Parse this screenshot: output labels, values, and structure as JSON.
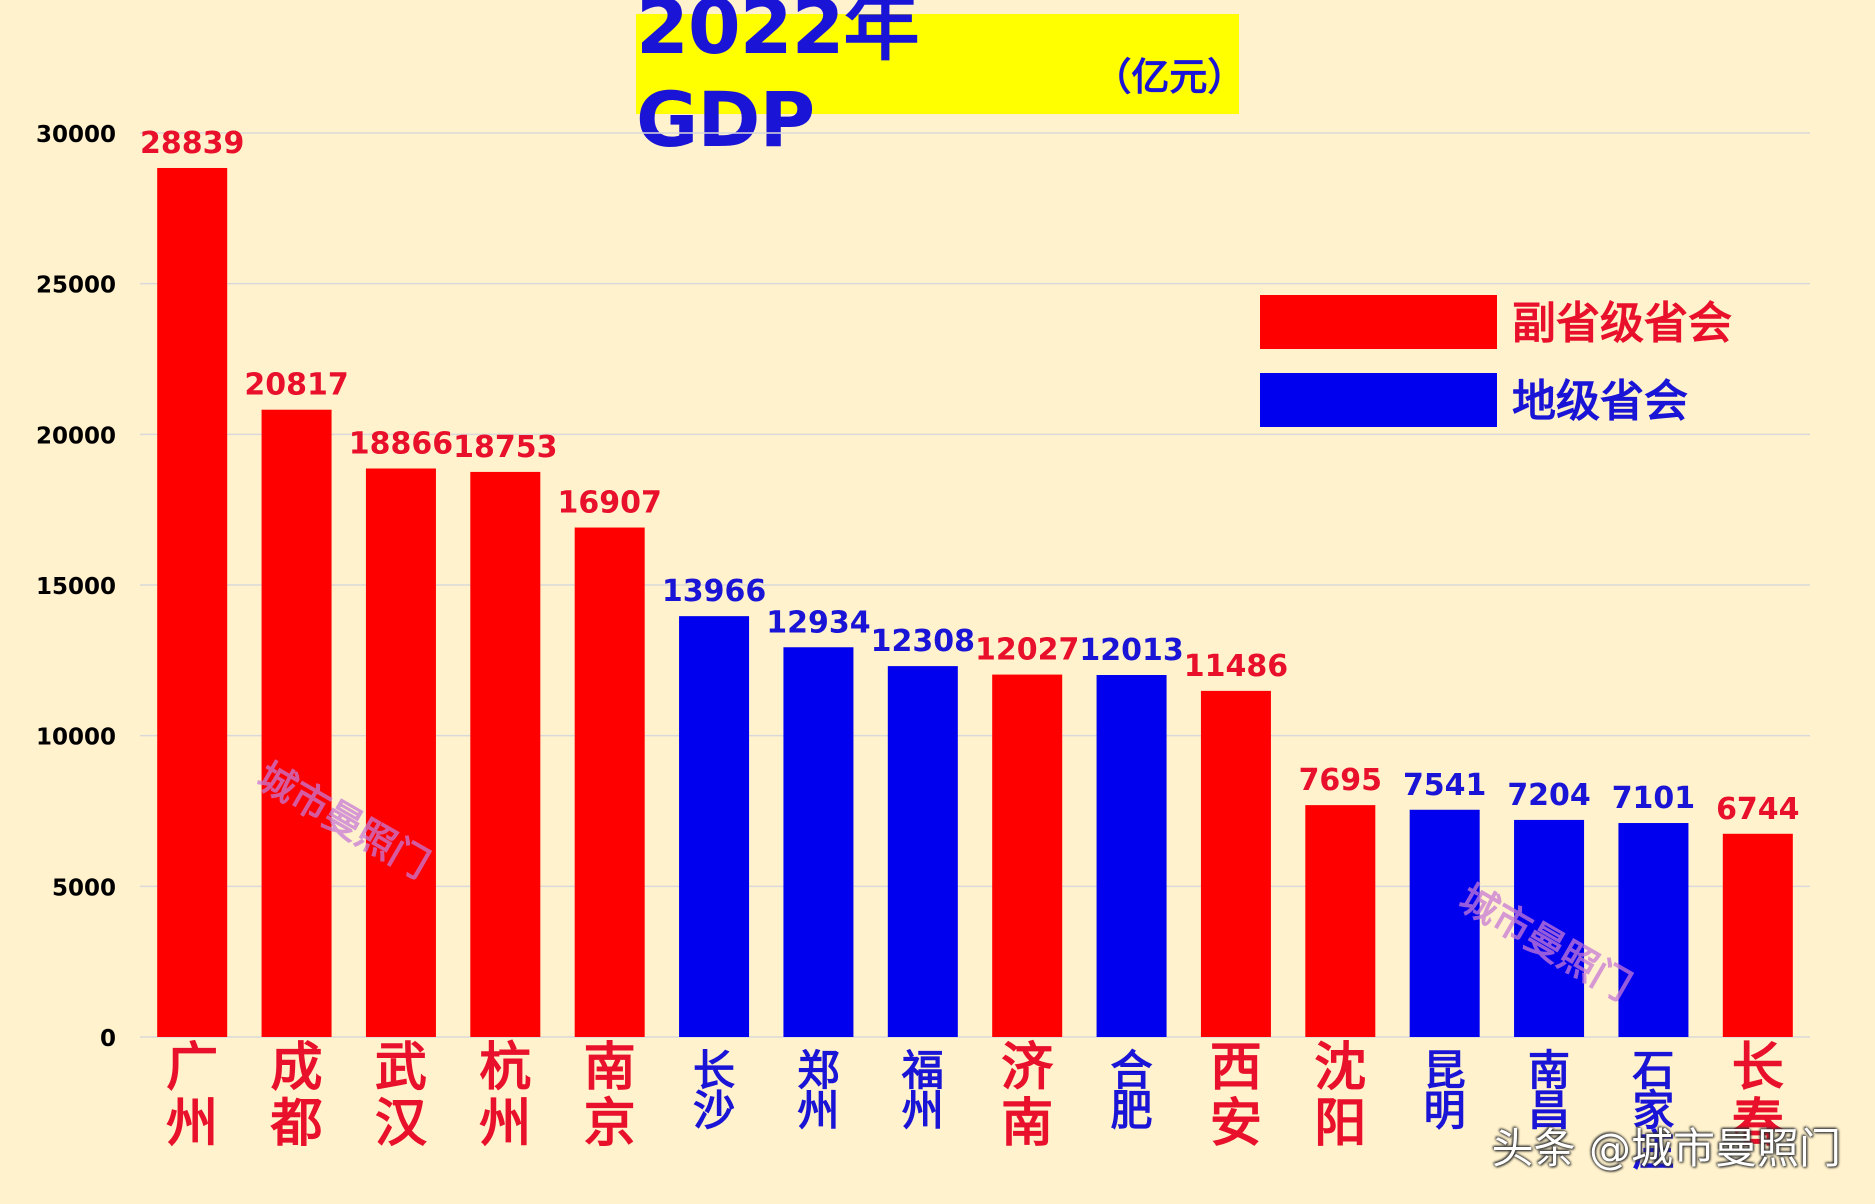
{
  "title": "2022年GDP",
  "title_unit": "（亿元）",
  "footer_watermark": "头条 @城市曼照门",
  "stamp_text": "城市曼照门",
  "colors": {
    "background": "#fff2cc",
    "title_bg": "#ffff00",
    "title_text": "#1a14d6",
    "red": "#ff0000",
    "blue": "#0000ee",
    "label_red": "#e8102a",
    "label_blue": "#1a14d6",
    "grid": "#d9d9d9"
  },
  "chart_data": {
    "type": "bar",
    "title": "2022年GDP（亿元）",
    "xlabel": "",
    "ylabel": "",
    "ylim": [
      0,
      30000
    ],
    "yticks": [
      0,
      5000,
      10000,
      15000,
      20000,
      25000,
      30000
    ],
    "grid": true,
    "legend_position": "top-right",
    "legend": [
      {
        "name": "副省级省会",
        "group": "red"
      },
      {
        "name": "地级省会",
        "group": "blue"
      }
    ],
    "categories": [
      "广州",
      "成都",
      "武汉",
      "杭州",
      "南京",
      "长沙",
      "郑州",
      "福州",
      "济南",
      "合肥",
      "西安",
      "沈阳",
      "昆明",
      "南昌",
      "石家庄",
      "长春"
    ],
    "values": [
      28839,
      20817,
      18866,
      18753,
      16907,
      13966,
      12934,
      12308,
      12027,
      12013,
      11486,
      7695,
      7541,
      7204,
      7101,
      6744
    ],
    "groups": [
      "red",
      "red",
      "red",
      "red",
      "red",
      "blue",
      "blue",
      "blue",
      "red",
      "blue",
      "red",
      "red",
      "blue",
      "blue",
      "blue",
      "red"
    ]
  }
}
